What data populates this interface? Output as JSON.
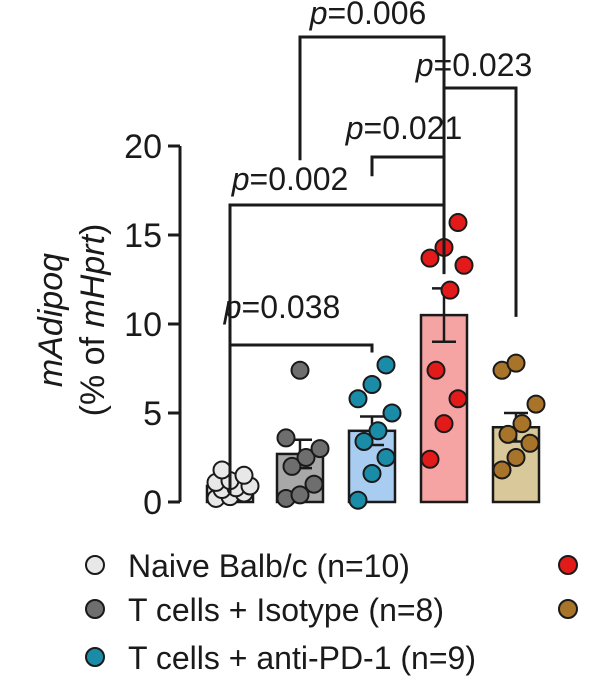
{
  "chart_data": {
    "type": "bar",
    "ylabel_main": "mAdipoq",
    "ylabel_sub": "(% of mHprt)",
    "ylim": [
      0,
      20
    ],
    "yticks": [
      "0",
      "5",
      "10",
      "15",
      "20"
    ],
    "series": [
      {
        "name": "Naive Balb/c (n=10)",
        "mean": 0.9,
        "sem": 0.25,
        "color": "#e8e8e8",
        "bar_color": "#ebebeb",
        "points": [
          0.2,
          0.3,
          0.5,
          0.7,
          0.8,
          0.9,
          1.1,
          1.2,
          1.5,
          1.8
        ]
      },
      {
        "name": "T cells + Isotype (n=8)",
        "mean": 2.7,
        "sem": 0.8,
        "color": "#6e6e6e",
        "bar_color": "#a8a8a8",
        "points": [
          0.2,
          0.4,
          1.0,
          2.0,
          2.5,
          3.0,
          3.6,
          7.4
        ]
      },
      {
        "name": "T cells + anti-PD-1 (n=9)",
        "mean": 4.0,
        "sem": 0.8,
        "color": "#1a8ca8",
        "bar_color": "#a9cdf1",
        "points": [
          0.1,
          1.6,
          2.5,
          3.4,
          4.0,
          5.0,
          5.8,
          6.6,
          7.7
        ]
      },
      {
        "name": "",
        "mean": 10.5,
        "sem": 1.5,
        "color": "#e21a1a",
        "bar_color": "#f5a3a3",
        "points": [
          2.4,
          4.4,
          5.8,
          7.4,
          11.9,
          13.3,
          13.7,
          14.3,
          15.7
        ]
      },
      {
        "name": "",
        "mean": 4.2,
        "sem": 0.8,
        "color": "#a8742a",
        "bar_color": "#d9c99a",
        "points": [
          1.8,
          2.5,
          3.3,
          3.8,
          4.4,
          5.5,
          7.4,
          7.8
        ]
      }
    ],
    "significance": [
      {
        "label": "p=0.038",
        "from": 0,
        "to": 2
      },
      {
        "label": "p=0.002",
        "from": 0,
        "to": 3
      },
      {
        "label": "p=0.021",
        "from": 2,
        "to": 3
      },
      {
        "label": "p=0.006",
        "from": 1,
        "to": 3
      },
      {
        "label": "p=0.023",
        "from": 3,
        "to": 4
      }
    ],
    "legend": [
      {
        "label": "Naive Balb/c (n=10)",
        "color": "#e8e8e8"
      },
      {
        "label": "T cells + Isotype (n=8)",
        "color": "#6e6e6e"
      },
      {
        "label": "T cells + anti-PD-1 (n=9)",
        "color": "#1a8ca8"
      }
    ],
    "legend_right_markers": [
      "#e21a1a",
      "#a8742a"
    ]
  }
}
